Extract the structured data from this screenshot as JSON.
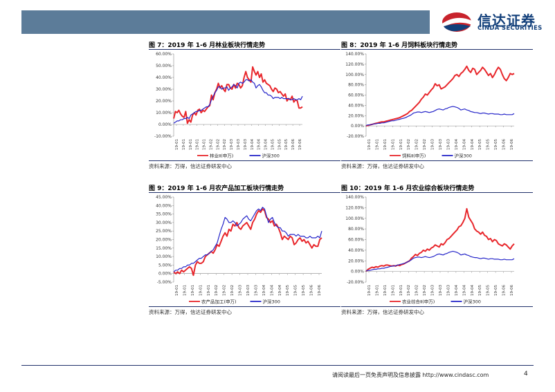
{
  "header": {
    "logo_cn": "信达证券",
    "logo_en": "CINDA SECURITIES"
  },
  "footer": {
    "disclaimer": "请阅读最后一页免责声明及信息披露 http://www.cindasc.com",
    "page": "4"
  },
  "colors": {
    "red": "#e8262b",
    "blue": "#2525c9",
    "banner": "#5c7c99",
    "rule": "#1f2f6a"
  },
  "chart_data": [
    {
      "type": "line",
      "title": "图 7：2019 年 1-6 月林业板块行情走势",
      "source": "资料来源：万得，信达证券研发中心",
      "ylim": [
        -10,
        60
      ],
      "yticks": [
        "60.00%",
        "50.00%",
        "40.00%",
        "30.00%",
        "20.00%",
        "10.00%",
        "0.00%",
        "-10.00%"
      ],
      "xticks": [
        "19-01",
        "19-01",
        "19-01",
        "19-01",
        "19-01",
        "19-02",
        "19-02",
        "19-02",
        "19-03",
        "19-03",
        "19-03",
        "19-04",
        "19-04",
        "19-04",
        "19-05",
        "19-05",
        "19-05",
        "19-06",
        "19-06"
      ],
      "series": [
        {
          "name": "林业Ⅱ(申万)",
          "color": "#e8262b",
          "values": [
            5,
            11,
            10,
            12,
            9,
            7,
            6,
            11,
            1,
            4,
            2,
            8,
            10,
            8,
            12,
            13,
            10,
            12,
            11,
            13,
            15,
            16,
            25,
            21,
            27,
            30,
            35,
            31,
            33,
            30,
            28,
            34,
            34,
            31,
            30,
            34,
            31,
            35,
            34,
            31,
            33,
            40,
            45,
            40,
            38,
            36,
            49,
            45,
            42,
            45,
            40,
            43,
            36,
            38,
            35,
            34,
            33,
            30,
            28,
            31,
            30,
            27,
            28,
            26,
            24,
            26,
            20,
            22,
            21,
            24,
            19,
            21,
            20,
            14,
            14,
            15
          ]
        },
        {
          "name": "沪深300",
          "color": "#2525c9",
          "values": [
            1,
            2,
            3,
            3,
            4,
            4,
            5,
            5,
            6,
            5,
            8,
            9,
            10,
            11,
            11,
            12,
            12,
            13,
            14,
            15,
            15,
            17,
            21,
            24,
            27,
            29,
            32,
            32,
            30,
            31,
            31,
            32,
            29,
            31,
            32,
            34,
            33,
            31,
            35,
            36,
            35,
            36,
            38,
            38,
            37,
            38,
            36,
            35,
            31,
            33,
            34,
            32,
            29,
            27,
            27,
            25,
            25,
            24,
            22,
            23,
            23,
            23,
            22,
            23,
            22,
            22,
            22,
            22,
            21,
            21,
            22,
            21,
            21,
            22,
            21,
            24
          ]
        }
      ]
    },
    {
      "type": "line",
      "title": "图 8：2019 年 1-6 月饲料板块行情走势",
      "source": "资料来源：万得，信达证券研发中心",
      "ylim": [
        -20,
        140
      ],
      "yticks": [
        "140.00%",
        "120.00%",
        "100.00%",
        "80.00%",
        "60.00%",
        "40.00%",
        "20.00%",
        "0.00%",
        "-20.00%"
      ],
      "xticks": [
        "19-01",
        "19-01",
        "19-01",
        "19-01",
        "19-01",
        "19-02",
        "19-02",
        "19-02",
        "19-03",
        "19-03",
        "19-03",
        "19-04",
        "19-04",
        "19-04",
        "19-05",
        "19-05",
        "19-05",
        "19-06",
        "19-06"
      ],
      "series": [
        {
          "name": "饲料Ⅱ(申万)",
          "color": "#e8262b",
          "values": [
            0,
            1,
            2,
            3,
            4,
            5,
            6,
            7,
            8,
            8,
            9,
            10,
            11,
            12,
            13,
            14,
            15,
            16,
            18,
            20,
            22,
            24,
            28,
            30,
            34,
            38,
            42,
            46,
            52,
            56,
            62,
            60,
            65,
            70,
            74,
            82,
            78,
            80,
            72,
            74,
            76,
            80,
            84,
            88,
            92,
            98,
            100,
            96,
            102,
            105,
            110,
            116,
            108,
            104,
            112,
            110,
            100,
            104,
            108,
            114,
            110,
            104,
            98,
            102,
            94,
            100,
            108,
            114,
            110,
            100,
            92,
            88,
            94,
            102,
            100,
            102
          ]
        },
        {
          "name": "沪深300",
          "color": "#2525c9",
          "values": [
            1,
            2,
            2,
            3,
            4,
            4,
            5,
            5,
            6,
            6,
            7,
            8,
            9,
            10,
            10,
            11,
            12,
            13,
            14,
            15,
            16,
            18,
            20,
            22,
            25,
            26,
            27,
            27,
            26,
            27,
            28,
            27,
            26,
            27,
            28,
            30,
            32,
            33,
            32,
            31,
            33,
            34,
            36,
            37,
            38,
            37,
            36,
            34,
            31,
            32,
            33,
            31,
            30,
            28,
            27,
            26,
            26,
            25,
            24,
            25,
            25,
            24,
            23,
            24,
            24,
            23,
            23,
            23,
            22,
            22,
            23,
            22,
            22,
            22,
            22,
            24
          ]
        }
      ]
    },
    {
      "type": "line",
      "title": "图 9：2019 年 1-6 月农产品加工板块行情走势",
      "source": "资料来源：万得，信达证券研发中心",
      "ylim": [
        -5,
        45
      ],
      "yticks": [
        "45.00%",
        "40.00%",
        "35.00%",
        "30.00%",
        "25.00%",
        "20.00%",
        "15.00%",
        "10.00%",
        "5.00%",
        "0.00%",
        "-5.00%"
      ],
      "xticks": [
        "19-01",
        "19-01",
        "19-01",
        "19-01",
        "19-01",
        "19-02",
        "19-02",
        "19-02",
        "19-03",
        "19-03",
        "19-03",
        "19-04",
        "19-04",
        "19-04",
        "19-05",
        "19-05",
        "19-05",
        "19-06",
        "19-06"
      ],
      "series": [
        {
          "name": "农产品加工(申万)",
          "color": "#e8262b",
          "values": [
            1,
            0,
            1,
            0,
            2,
            1,
            2,
            3,
            4,
            3,
            -1,
            5,
            7,
            6,
            6,
            7,
            10,
            11,
            12,
            13,
            12,
            14,
            17,
            16,
            19,
            22,
            24,
            22,
            26,
            25,
            29,
            28,
            30,
            27,
            26,
            28,
            29,
            30,
            28,
            26,
            30,
            32,
            35,
            37,
            36,
            38,
            37,
            33,
            32,
            30,
            31,
            28,
            29,
            27,
            24,
            20,
            22,
            21,
            20,
            22,
            21,
            17,
            18,
            20,
            21,
            19,
            20,
            18,
            19,
            17,
            15,
            17,
            16,
            16,
            20,
            21
          ]
        },
        {
          "name": "沪深300",
          "color": "#2525c9",
          "values": [
            1,
            2,
            2,
            3,
            3,
            4,
            4,
            5,
            5,
            6,
            6,
            7,
            8,
            9,
            9,
            10,
            11,
            11,
            12,
            13,
            14,
            16,
            18,
            22,
            26,
            29,
            33,
            32,
            30,
            30,
            31,
            30,
            28,
            29,
            30,
            32,
            33,
            34,
            32,
            31,
            33,
            35,
            37,
            38,
            37,
            39,
            38,
            34,
            30,
            32,
            33,
            30,
            28,
            27,
            27,
            25,
            25,
            24,
            22,
            23,
            23,
            23,
            22,
            23,
            22,
            22,
            22,
            21,
            21,
            22,
            21,
            21,
            21,
            22,
            21,
            25
          ]
        }
      ]
    },
    {
      "type": "line",
      "title": "图 10：2019 年 1-6 月农业综合板块行情走势",
      "source": "资料来源：万得，信达证券研发中心",
      "ylim": [
        -20,
        140
      ],
      "yticks": [
        "140.00%",
        "120.00%",
        "100.00%",
        "80.00%",
        "60.00%",
        "40.00%",
        "20.00%",
        "0.00%",
        "-20.00%"
      ],
      "xticks": [
        "19-01",
        "19-01",
        "19-01",
        "19-01",
        "19-01",
        "19-02",
        "19-02",
        "19-02",
        "19-03",
        "19-03",
        "19-03",
        "19-04",
        "19-04",
        "19-04",
        "19-05",
        "19-05",
        "19-05",
        "19-06",
        "19-06"
      ],
      "series": [
        {
          "name": "农业综合Ⅱ(申万)",
          "color": "#e8262b",
          "values": [
            0,
            4,
            6,
            8,
            7,
            9,
            8,
            10,
            11,
            10,
            12,
            12,
            11,
            10,
            11,
            10,
            12,
            11,
            13,
            14,
            16,
            18,
            20,
            25,
            28,
            32,
            30,
            34,
            36,
            40,
            38,
            42,
            40,
            44,
            46,
            50,
            48,
            46,
            52,
            50,
            54,
            60,
            62,
            66,
            70,
            74,
            78,
            84,
            86,
            92,
            100,
            118,
            102,
            96,
            90,
            80,
            76,
            74,
            70,
            74,
            68,
            66,
            60,
            62,
            56,
            60,
            58,
            52,
            50,
            48,
            52,
            50,
            46,
            42,
            48,
            52
          ]
        },
        {
          "name": "沪深300",
          "color": "#2525c9",
          "values": [
            1,
            2,
            2,
            3,
            4,
            4,
            5,
            5,
            6,
            6,
            7,
            8,
            9,
            10,
            10,
            11,
            12,
            13,
            14,
            15,
            16,
            18,
            20,
            22,
            25,
            26,
            27,
            27,
            26,
            27,
            28,
            27,
            26,
            27,
            28,
            30,
            32,
            33,
            32,
            31,
            33,
            34,
            36,
            37,
            38,
            37,
            36,
            34,
            31,
            32,
            33,
            31,
            30,
            28,
            27,
            26,
            26,
            25,
            24,
            25,
            25,
            24,
            23,
            24,
            24,
            23,
            23,
            23,
            22,
            22,
            23,
            22,
            22,
            22,
            22,
            24
          ]
        }
      ]
    }
  ]
}
